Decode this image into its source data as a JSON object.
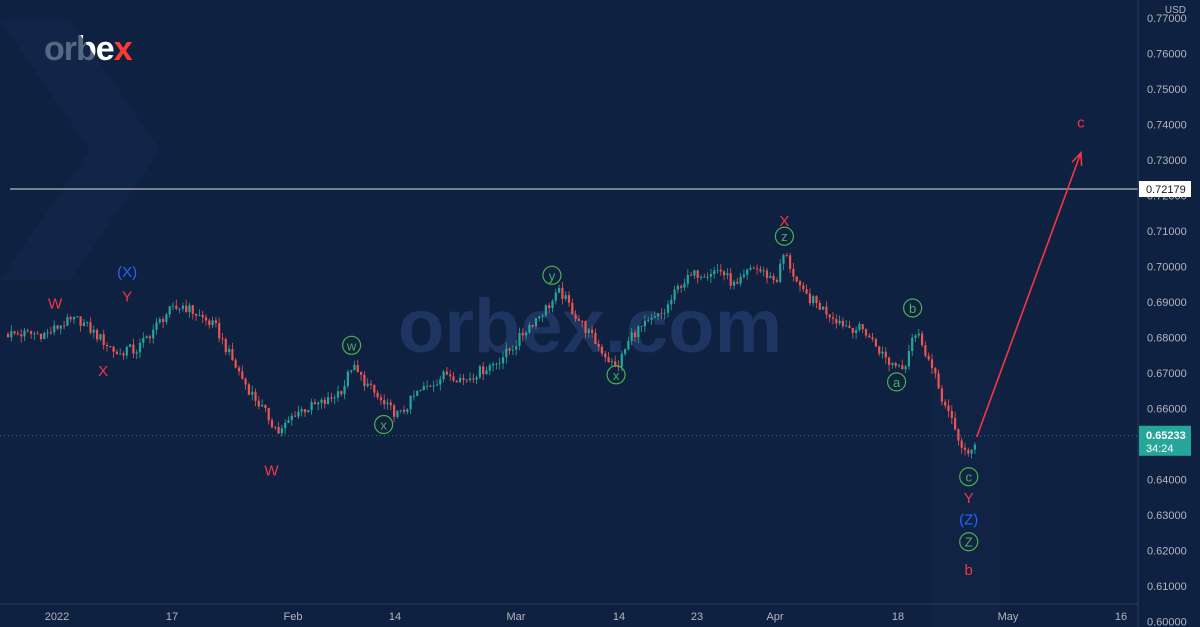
{
  "brand": {
    "logo_prefix": "orbe",
    "logo_accent": "x",
    "watermark": "orbex.com"
  },
  "chart_data": {
    "type": "line",
    "title": "",
    "xlabel": "",
    "ylabel": "",
    "currency_label": "USD",
    "ylim": [
      0.6,
      0.775
    ],
    "y_ticks": [
      "0.77000",
      "0.76000",
      "0.75000",
      "0.74000",
      "0.73000",
      "0.72000",
      "0.71000",
      "0.70000",
      "0.69000",
      "0.68000",
      "0.67000",
      "0.66000",
      "0.65000",
      "0.64000",
      "0.63000",
      "0.62000",
      "0.61000",
      "0.60000"
    ],
    "x_ticks": [
      "2022",
      "17",
      "Feb",
      "14",
      "Mar",
      "14",
      "23",
      "Apr",
      "18",
      "May",
      "16"
    ],
    "horizontal_level": {
      "value": 0.72179,
      "label": "0.72179"
    },
    "last_price": {
      "value": 0.65233,
      "label": "0.65233",
      "timer": "34:24"
    },
    "series": [
      {
        "x": [
          "2022-01-03",
          "2022-01-05",
          "2022-01-07",
          "2022-01-10",
          "2022-01-12",
          "2022-01-13",
          "2022-01-14",
          "2022-01-18",
          "2022-01-20",
          "2022-01-24",
          "2022-01-26",
          "2022-01-28",
          "2022-02-01",
          "2022-02-03",
          "2022-02-07",
          "2022-02-09",
          "2022-02-10",
          "2022-02-14",
          "2022-02-16",
          "2022-02-18",
          "2022-02-22",
          "2022-02-24",
          "2022-02-28",
          "2022-03-02",
          "2022-03-04",
          "2022-03-07",
          "2022-03-08",
          "2022-03-10",
          "2022-03-14",
          "2022-03-15",
          "2022-03-17",
          "2022-03-21",
          "2022-03-23",
          "2022-03-25",
          "2022-03-28",
          "2022-03-30",
          "2022-04-01",
          "2022-04-04",
          "2022-04-05",
          "2022-04-07",
          "2022-04-11",
          "2022-04-13",
          "2022-04-15",
          "2022-04-18",
          "2022-04-20",
          "2022-04-21",
          "2022-04-22",
          "2022-04-25",
          "2022-04-27",
          "2022-04-28",
          "2022-04-29"
        ],
        "y": [
          0.681,
          0.684,
          0.685,
          0.679,
          0.675,
          0.677,
          0.676,
          0.687,
          0.689,
          0.683,
          0.674,
          0.666,
          0.653,
          0.659,
          0.662,
          0.666,
          0.672,
          0.661,
          0.658,
          0.664,
          0.67,
          0.668,
          0.673,
          0.677,
          0.683,
          0.69,
          0.693,
          0.686,
          0.674,
          0.671,
          0.681,
          0.687,
          0.695,
          0.698,
          0.699,
          0.694,
          0.7,
          0.696,
          0.704,
          0.693,
          0.686,
          0.683,
          0.682,
          0.673,
          0.672,
          0.681,
          0.68,
          0.661,
          0.65,
          0.646,
          0.652
        ]
      }
    ],
    "projection": {
      "from": {
        "x": "2022-04-29",
        "y": 0.652
      },
      "to": {
        "x": "2022-05-12",
        "y": 0.732
      }
    },
    "wave_labels": [
      {
        "text": "W",
        "color": "red",
        "x": "2022-01-04",
        "y": 0.6895
      },
      {
        "text": "(X)",
        "color": "blue",
        "x": "2022-01-13",
        "y": 0.6985
      },
      {
        "text": "Y",
        "color": "red",
        "x": "2022-01-13",
        "y": 0.6915
      },
      {
        "text": "X",
        "color": "red",
        "x": "2022-01-10",
        "y": 0.6705
      },
      {
        "text": "W",
        "color": "red",
        "x": "2022-01-31",
        "y": 0.6425
      },
      {
        "text": "w",
        "color": "green",
        "circle": true,
        "x": "2022-02-10",
        "y": 0.6778
      },
      {
        "text": "x",
        "color": "green",
        "circle": true,
        "x": "2022-02-14",
        "y": 0.6555
      },
      {
        "text": "y",
        "color": "green",
        "circle": true,
        "x": "2022-03-07",
        "y": 0.6975
      },
      {
        "text": "x",
        "color": "green",
        "circle": true,
        "x": "2022-03-15",
        "y": 0.6695
      },
      {
        "text": "X",
        "color": "red",
        "x": "2022-04-05",
        "y": 0.7128
      },
      {
        "text": "z",
        "color": "green",
        "circle": true,
        "x": "2022-04-05",
        "y": 0.7085
      },
      {
        "text": "b",
        "color": "green",
        "circle": true,
        "x": "2022-04-21",
        "y": 0.6883
      },
      {
        "text": "a",
        "color": "green",
        "circle": true,
        "x": "2022-04-19",
        "y": 0.6675
      },
      {
        "text": "c",
        "color": "green",
        "circle": true,
        "x": "2022-04-28",
        "y": 0.6408
      },
      {
        "text": "Y",
        "color": "red",
        "x": "2022-04-28",
        "y": 0.6348
      },
      {
        "text": "(Z)",
        "color": "blue",
        "x": "2022-04-28",
        "y": 0.6288
      },
      {
        "text": "Z",
        "color": "green",
        "circle": true,
        "x": "2022-04-28",
        "y": 0.6225
      },
      {
        "text": "b",
        "color": "red",
        "x": "2022-04-28",
        "y": 0.6145
      },
      {
        "text": "c",
        "color": "red",
        "x": "2022-05-12",
        "y": 0.7405
      }
    ],
    "colors": {
      "background": "#0f2141",
      "price": "#26a69a",
      "price_down": "#ef5350",
      "red": "#f23645",
      "green": "#4caf50",
      "blue": "#2962ff",
      "arrow": "#f23645",
      "hline": "#ffffff"
    },
    "grid": false
  }
}
